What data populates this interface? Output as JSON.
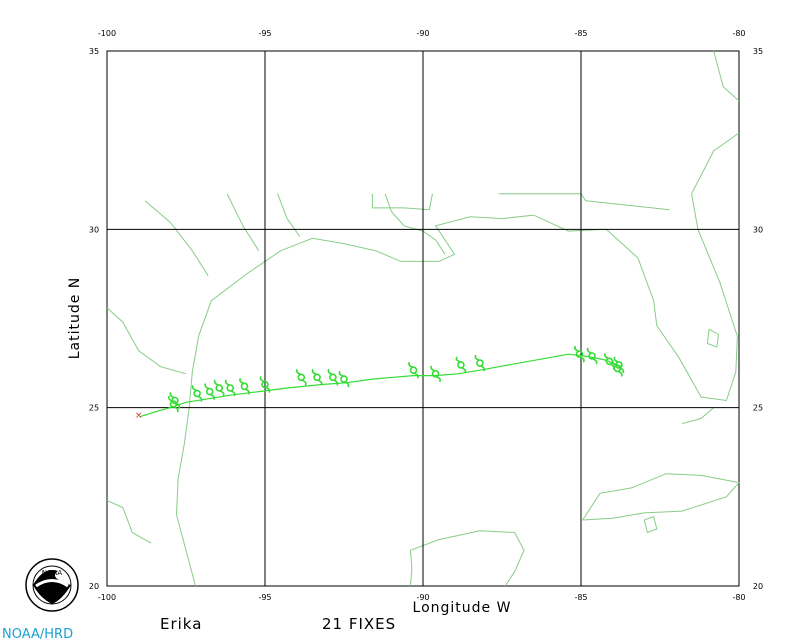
{
  "chart_data": {
    "type": "map-track",
    "storm_name": "Erika",
    "fixes_label": "21 FIXES",
    "xlabel": "Longitude W",
    "ylabel": "Latitude N",
    "credit": "NOAA/HRD",
    "logo_text": "NOAA",
    "xlim": [
      -100,
      -80
    ],
    "ylim": [
      20,
      35
    ],
    "x_ticks": [
      "-100",
      "-95",
      "-90",
      "-85",
      "-80"
    ],
    "y_ticks": [
      "20",
      "25",
      "30",
      "35"
    ],
    "grid": true,
    "coast_color": "#88cc88",
    "track_color": "#33dd33",
    "landfall_color": "#cc3322",
    "track": [
      [
        -83.7,
        26.15
      ],
      [
        -84.3,
        26.35
      ],
      [
        -84.9,
        26.45
      ],
      [
        -85.4,
        26.5
      ],
      [
        -87.6,
        26.15
      ],
      [
        -88.2,
        26.05
      ],
      [
        -88.9,
        25.95
      ],
      [
        -89.6,
        25.9
      ],
      [
        -90.3,
        25.9
      ],
      [
        -90.95,
        25.85
      ],
      [
        -91.6,
        25.8
      ],
      [
        -92.4,
        25.7
      ],
      [
        -93.2,
        25.65
      ],
      [
        -94.3,
        25.55
      ],
      [
        -95.2,
        25.45
      ],
      [
        -96.1,
        25.35
      ],
      [
        -96.8,
        25.25
      ],
      [
        -97.5,
        25.15
      ],
      [
        -98.0,
        25.0
      ],
      [
        -98.4,
        24.9
      ],
      [
        -98.95,
        24.75
      ]
    ],
    "fixes": [
      [
        -83.8,
        26.2
      ],
      [
        -83.85,
        26.1
      ],
      [
        -84.1,
        26.3
      ],
      [
        -84.65,
        26.45
      ],
      [
        -85.05,
        26.5
      ],
      [
        -88.2,
        26.25
      ],
      [
        -88.8,
        26.2
      ],
      [
        -89.6,
        25.95
      ],
      [
        -90.3,
        26.05
      ],
      [
        -92.5,
        25.8
      ],
      [
        -92.85,
        25.85
      ],
      [
        -93.35,
        25.85
      ],
      [
        -93.85,
        25.85
      ],
      [
        -95.0,
        25.65
      ],
      [
        -95.65,
        25.6
      ],
      [
        -96.1,
        25.55
      ],
      [
        -96.45,
        25.55
      ],
      [
        -96.75,
        25.45
      ],
      [
        -97.15,
        25.4
      ],
      [
        -97.85,
        25.2
      ],
      [
        -97.9,
        25.1
      ]
    ],
    "landfall_point": [
      -99.0,
      24.8
    ],
    "coastlines": [
      {
        "name": "gulf-coast-main",
        "points": [
          [
            -97.2,
            20.0
          ],
          [
            -97.5,
            21.0
          ],
          [
            -97.8,
            22.0
          ],
          [
            -97.75,
            23.0
          ],
          [
            -97.55,
            24.0
          ],
          [
            -97.4,
            25.0
          ],
          [
            -97.3,
            26.0
          ],
          [
            -97.1,
            27.0
          ],
          [
            -96.7,
            28.0
          ],
          [
            -95.5,
            28.8
          ],
          [
            -94.5,
            29.4
          ],
          [
            -93.5,
            29.75
          ],
          [
            -92.5,
            29.6
          ],
          [
            -91.5,
            29.4
          ],
          [
            -90.7,
            29.1
          ],
          [
            -89.5,
            29.1
          ],
          [
            -89.0,
            29.3
          ],
          [
            -89.6,
            30.1
          ],
          [
            -88.5,
            30.35
          ],
          [
            -87.5,
            30.3
          ],
          [
            -86.5,
            30.4
          ],
          [
            -85.4,
            29.95
          ],
          [
            -84.2,
            30.0
          ],
          [
            -83.2,
            29.2
          ],
          [
            -82.7,
            28.0
          ],
          [
            -82.6,
            27.3
          ],
          [
            -81.9,
            26.4
          ],
          [
            -81.2,
            25.3
          ],
          [
            -80.4,
            25.2
          ],
          [
            -80.1,
            26.0
          ],
          [
            -80.05,
            27.0
          ],
          [
            -80.6,
            28.5
          ],
          [
            -81.3,
            30.0
          ],
          [
            -81.5,
            31.0
          ],
          [
            -80.8,
            32.2
          ],
          [
            -80.0,
            32.7
          ]
        ]
      },
      {
        "name": "east-coast-north",
        "points": [
          [
            -80.0,
            33.6
          ],
          [
            -80.5,
            34.0
          ],
          [
            -80.8,
            35.0
          ]
        ]
      },
      {
        "name": "yucatan",
        "points": [
          [
            -90.4,
            20.0
          ],
          [
            -90.35,
            20.5
          ],
          [
            -90.4,
            21.0
          ],
          [
            -89.5,
            21.3
          ],
          [
            -88.2,
            21.55
          ],
          [
            -87.1,
            21.5
          ],
          [
            -86.8,
            21.0
          ],
          [
            -87.1,
            20.4
          ],
          [
            -87.4,
            20.0
          ]
        ]
      },
      {
        "name": "cuba",
        "points": [
          [
            -84.95,
            21.85
          ],
          [
            -84.4,
            22.6
          ],
          [
            -83.4,
            22.75
          ],
          [
            -82.3,
            23.15
          ],
          [
            -81.2,
            23.1
          ],
          [
            -80.0,
            22.9
          ],
          [
            -80.4,
            22.5
          ],
          [
            -81.8,
            22.1
          ],
          [
            -83.0,
            22.05
          ],
          [
            -84.0,
            21.9
          ],
          [
            -84.95,
            21.85
          ]
        ]
      },
      {
        "name": "isle-of-youth",
        "points": [
          [
            -83.0,
            21.85
          ],
          [
            -82.7,
            21.95
          ],
          [
            -82.6,
            21.6
          ],
          [
            -82.9,
            21.5
          ],
          [
            -83.0,
            21.85
          ]
        ]
      },
      {
        "name": "keys",
        "points": [
          [
            -80.8,
            25.0
          ],
          [
            -81.2,
            24.7
          ],
          [
            -81.8,
            24.55
          ]
        ]
      },
      {
        "name": "mississippi-river",
        "points": [
          [
            -91.2,
            31.0
          ],
          [
            -91.0,
            30.5
          ],
          [
            -90.6,
            30.1
          ],
          [
            -90.0,
            29.95
          ],
          [
            -89.6,
            29.7
          ],
          [
            -89.3,
            29.3
          ]
        ]
      },
      {
        "name": "texas-river-a",
        "points": [
          [
            -98.8,
            30.8
          ],
          [
            -98.0,
            30.2
          ],
          [
            -97.3,
            29.4
          ],
          [
            -96.8,
            28.7
          ]
        ]
      },
      {
        "name": "texas-river-b",
        "points": [
          [
            -96.2,
            31.0
          ],
          [
            -95.7,
            30.1
          ],
          [
            -95.2,
            29.4
          ]
        ]
      },
      {
        "name": "texas-river-c",
        "points": [
          [
            -94.6,
            31.0
          ],
          [
            -94.3,
            30.3
          ],
          [
            -93.9,
            29.8
          ]
        ]
      },
      {
        "name": "rio-grande",
        "points": [
          [
            -100.0,
            27.8
          ],
          [
            -99.5,
            27.4
          ],
          [
            -99.0,
            26.6
          ],
          [
            -98.3,
            26.15
          ],
          [
            -97.5,
            25.95
          ]
        ]
      },
      {
        "name": "la-border",
        "points": [
          [
            -91.6,
            31.0
          ],
          [
            -91.6,
            30.6
          ],
          [
            -90.6,
            30.6
          ],
          [
            -89.8,
            30.55
          ],
          [
            -89.7,
            31.0
          ]
        ]
      },
      {
        "name": "fl-state-line",
        "points": [
          [
            -87.6,
            31.0
          ],
          [
            -85.0,
            31.0
          ],
          [
            -84.85,
            30.8
          ],
          [
            -82.2,
            30.55
          ]
        ]
      },
      {
        "name": "lake-okeechobee",
        "points": [
          [
            -80.95,
            27.2
          ],
          [
            -80.65,
            27.05
          ],
          [
            -80.7,
            26.7
          ],
          [
            -81.0,
            26.8
          ],
          [
            -80.95,
            27.2
          ]
        ]
      },
      {
        "name": "west-mexico",
        "points": [
          [
            -100.0,
            22.4
          ],
          [
            -99.5,
            22.2
          ],
          [
            -99.2,
            21.5
          ],
          [
            -98.6,
            21.2
          ]
        ]
      }
    ]
  }
}
